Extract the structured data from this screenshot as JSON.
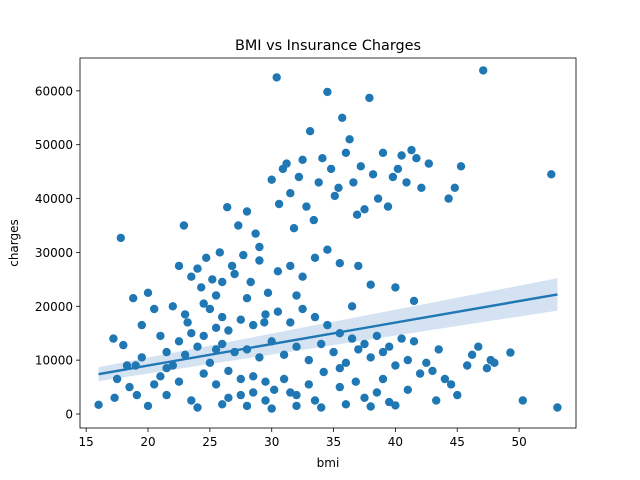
{
  "chart_data": {
    "type": "scatter",
    "title": "BMI vs Insurance Charges",
    "xlabel": "bmi",
    "ylabel": "charges",
    "xlim": [
      14.5,
      54.6
    ],
    "ylim": [
      -2600,
      66100
    ],
    "x_ticks": [
      15,
      20,
      25,
      30,
      35,
      40,
      45,
      50
    ],
    "y_ticks": [
      0,
      10000,
      20000,
      30000,
      40000,
      50000,
      60000
    ],
    "x_tick_labels": [
      "15",
      "20",
      "25",
      "30",
      "35",
      "40",
      "45",
      "50"
    ],
    "y_tick_labels": [
      "0",
      "10000",
      "20000",
      "30000",
      "40000",
      "50000",
      "60000"
    ],
    "grid": false,
    "legend": "none",
    "point_color": "#1f77b4",
    "series": [
      {
        "values": [
          [
            16.0,
            1700
          ],
          [
            17.3,
            3000
          ],
          [
            17.8,
            32700
          ],
          [
            17.2,
            14000
          ],
          [
            18.0,
            12800
          ],
          [
            18.3,
            9000
          ],
          [
            18.8,
            21500
          ],
          [
            19.1,
            3500
          ],
          [
            19.5,
            16500
          ],
          [
            20.0,
            22500
          ],
          [
            20.5,
            19500
          ],
          [
            21.0,
            14500
          ],
          [
            21.5,
            8500
          ],
          [
            22.0,
            20000
          ],
          [
            22.5,
            27500
          ],
          [
            22.9,
            35000
          ],
          [
            23.2,
            17000
          ],
          [
            23.5,
            25500
          ],
          [
            24.0,
            27000
          ],
          [
            24.3,
            23500
          ],
          [
            24.7,
            29000
          ],
          [
            25.0,
            19500
          ],
          [
            25.2,
            25000
          ],
          [
            25.5,
            22000
          ],
          [
            25.8,
            30000
          ],
          [
            26.0,
            18000
          ],
          [
            26.4,
            38400
          ],
          [
            26.8,
            27500
          ],
          [
            27.3,
            35000
          ],
          [
            27.7,
            29500
          ],
          [
            28.0,
            37600
          ],
          [
            28.3,
            24500
          ],
          [
            28.7,
            33500
          ],
          [
            29.0,
            28500
          ],
          [
            29.4,
            17000
          ],
          [
            29.7,
            22500
          ],
          [
            30.0,
            43500
          ],
          [
            30.4,
            62500
          ],
          [
            30.6,
            39000
          ],
          [
            30.9,
            45500
          ],
          [
            31.2,
            46500
          ],
          [
            31.5,
            41000
          ],
          [
            31.8,
            34500
          ],
          [
            32.2,
            44000
          ],
          [
            32.5,
            47200
          ],
          [
            32.8,
            38500
          ],
          [
            33.1,
            52500
          ],
          [
            33.4,
            36000
          ],
          [
            33.8,
            43000
          ],
          [
            34.1,
            47500
          ],
          [
            34.5,
            59800
          ],
          [
            34.8,
            45500
          ],
          [
            35.1,
            40500
          ],
          [
            35.4,
            42000
          ],
          [
            35.7,
            55000
          ],
          [
            36.0,
            48500
          ],
          [
            36.3,
            51000
          ],
          [
            36.6,
            43000
          ],
          [
            36.9,
            37000
          ],
          [
            37.2,
            46000
          ],
          [
            37.5,
            38000
          ],
          [
            37.9,
            58700
          ],
          [
            38.2,
            44500
          ],
          [
            38.6,
            40000
          ],
          [
            39.0,
            48500
          ],
          [
            39.4,
            38500
          ],
          [
            39.8,
            44000
          ],
          [
            40.2,
            45500
          ],
          [
            40.5,
            48000
          ],
          [
            40.9,
            43000
          ],
          [
            41.3,
            49000
          ],
          [
            41.7,
            47500
          ],
          [
            42.1,
            42000
          ],
          [
            42.7,
            46500
          ],
          [
            43.5,
            12000
          ],
          [
            44.3,
            40000
          ],
          [
            44.8,
            42000
          ],
          [
            45.3,
            46000
          ],
          [
            45.8,
            9000
          ],
          [
            46.2,
            11000
          ],
          [
            46.7,
            12500
          ],
          [
            47.1,
            63800
          ],
          [
            47.4,
            8500
          ],
          [
            47.7,
            10000
          ],
          [
            48.0,
            9500
          ],
          [
            49.3,
            11400
          ],
          [
            50.3,
            2500
          ],
          [
            52.6,
            44500
          ],
          [
            53.1,
            1200
          ],
          [
            36.5,
            20000
          ],
          [
            37.0,
            27500
          ],
          [
            38.0,
            24000
          ],
          [
            40.0,
            23500
          ],
          [
            41.5,
            21000
          ],
          [
            42.5,
            9500
          ],
          [
            43.0,
            8000
          ],
          [
            44.0,
            6500
          ],
          [
            45.0,
            3500
          ],
          [
            43.3,
            2500
          ],
          [
            39.5,
            2200
          ],
          [
            38.5,
            4000
          ],
          [
            36.8,
            6000
          ],
          [
            35.5,
            8500
          ],
          [
            34.2,
            7800
          ],
          [
            33.0,
            5500
          ],
          [
            32.0,
            3500
          ],
          [
            31.0,
            6500
          ],
          [
            30.2,
            4500
          ],
          [
            29.5,
            2500
          ],
          [
            28.5,
            4000
          ],
          [
            27.5,
            6500
          ],
          [
            26.5,
            3000
          ],
          [
            25.5,
            5500
          ],
          [
            24.5,
            7500
          ],
          [
            23.5,
            2500
          ],
          [
            22.5,
            6000
          ],
          [
            21.5,
            3500
          ],
          [
            20.5,
            5500
          ],
          [
            20.0,
            1500
          ],
          [
            21.0,
            7000
          ],
          [
            22.0,
            9000
          ],
          [
            23.0,
            11000
          ],
          [
            24.0,
            12500
          ],
          [
            25.0,
            9500
          ],
          [
            26.0,
            13000
          ],
          [
            27.0,
            11500
          ],
          [
            28.0,
            12000
          ],
          [
            29.0,
            10500
          ],
          [
            30.0,
            13500
          ],
          [
            31.0,
            11000
          ],
          [
            32.0,
            12500
          ],
          [
            33.0,
            10000
          ],
          [
            34.0,
            13000
          ],
          [
            35.0,
            11500
          ],
          [
            36.0,
            9500
          ],
          [
            37.0,
            12000
          ],
          [
            38.0,
            10500
          ],
          [
            39.0,
            11500
          ],
          [
            40.0,
            9000
          ],
          [
            41.0,
            10000
          ],
          [
            42.0,
            7500
          ],
          [
            19.0,
            9000
          ],
          [
            18.5,
            5000
          ],
          [
            17.5,
            6500
          ],
          [
            19.5,
            10500
          ],
          [
            21.5,
            11500
          ],
          [
            22.5,
            13500
          ],
          [
            23.5,
            15000
          ],
          [
            24.5,
            14500
          ],
          [
            25.5,
            16000
          ],
          [
            26.5,
            15500
          ],
          [
            27.5,
            17500
          ],
          [
            28.5,
            16500
          ],
          [
            29.5,
            18500
          ],
          [
            30.5,
            19000
          ],
          [
            31.5,
            17000
          ],
          [
            32.5,
            19500
          ],
          [
            33.5,
            18000
          ],
          [
            34.5,
            16500
          ],
          [
            35.5,
            15000
          ],
          [
            36.5,
            14000
          ],
          [
            37.5,
            13000
          ],
          [
            38.5,
            14500
          ],
          [
            39.5,
            12500
          ],
          [
            40.5,
            14000
          ],
          [
            41.5,
            13500
          ],
          [
            24.0,
            1200
          ],
          [
            26.0,
            1800
          ],
          [
            28.0,
            1500
          ],
          [
            30.0,
            1000
          ],
          [
            32.0,
            1500
          ],
          [
            34.0,
            1200
          ],
          [
            36.0,
            1800
          ],
          [
            38.0,
            1400
          ],
          [
            40.0,
            1600
          ],
          [
            30.5,
            26500
          ],
          [
            31.5,
            27500
          ],
          [
            32.5,
            25500
          ],
          [
            33.5,
            29000
          ],
          [
            34.5,
            30500
          ],
          [
            35.5,
            28000
          ],
          [
            27.0,
            26000
          ],
          [
            26.0,
            24500
          ],
          [
            29.0,
            31000
          ],
          [
            28.0,
            21500
          ],
          [
            32.0,
            22000
          ],
          [
            24.5,
            20500
          ],
          [
            23.0,
            18500
          ],
          [
            25.5,
            12000
          ],
          [
            26.5,
            8000
          ],
          [
            27.5,
            3500
          ],
          [
            28.5,
            7000
          ],
          [
            29.5,
            6000
          ],
          [
            31.5,
            4000
          ],
          [
            33.5,
            2500
          ],
          [
            35.5,
            5000
          ],
          [
            37.5,
            3000
          ],
          [
            39.0,
            6500
          ],
          [
            41.0,
            4500
          ],
          [
            44.5,
            5500
          ]
        ]
      }
    ],
    "regression": {
      "x_range": [
        16.0,
        53.1
      ],
      "y_start": 7400,
      "y_end": 22200,
      "ci_halfwidth_start": 1300,
      "ci_halfwidth_end": 3000,
      "line_color": "#1f77b4",
      "band_color": "#c5d8ec"
    }
  }
}
